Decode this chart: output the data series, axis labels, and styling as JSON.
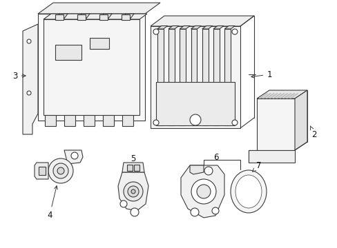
{
  "background_color": "#ffffff",
  "line_color": "#3a3a3a",
  "lw": 0.8,
  "lw_thin": 0.5,
  "lw_thick": 1.0,
  "fig_w": 4.89,
  "fig_h": 3.6,
  "dpi": 100
}
